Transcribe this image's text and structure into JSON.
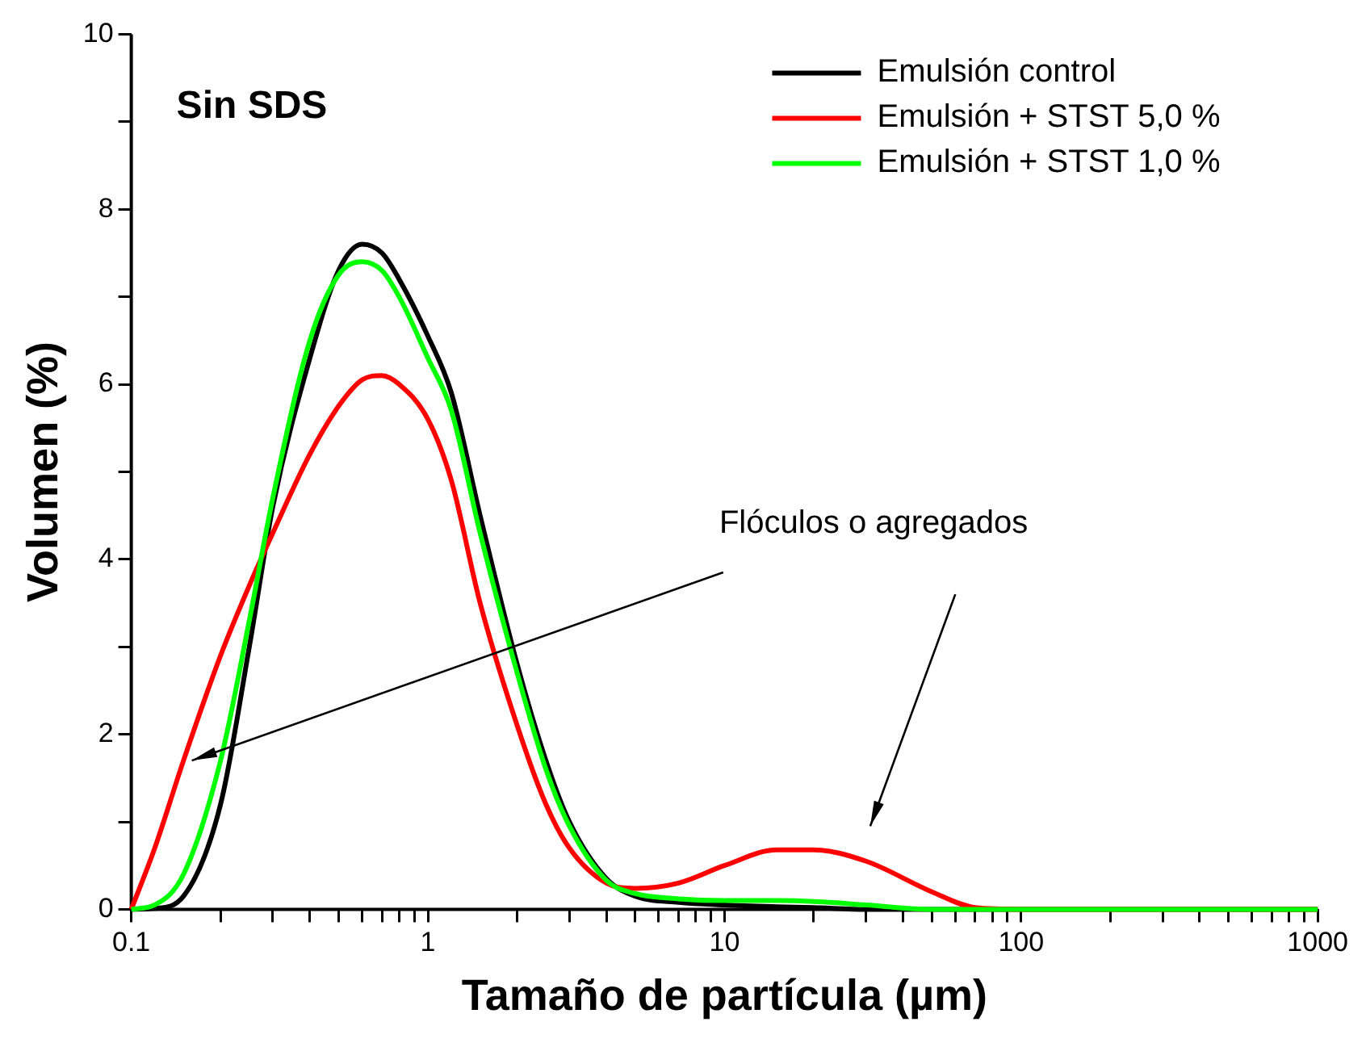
{
  "chart_data": {
    "type": "line",
    "xlabel": "Tamaño de partícula (µm)",
    "ylabel": "Volumen (%)",
    "x": [
      0.1,
      0.12,
      0.15,
      0.2,
      0.25,
      0.3,
      0.4,
      0.5,
      0.6,
      0.7,
      0.8,
      1,
      1.2,
      1.5,
      2,
      2.5,
      3,
      4,
      5,
      7,
      10,
      15,
      20,
      30,
      50,
      70,
      100,
      1000
    ],
    "series": [
      {
        "name": "Emulsión control",
        "color": "#000000",
        "values": [
          0,
          0.01,
          0.15,
          1.2,
          3.0,
          4.6,
          6.3,
          7.3,
          7.6,
          7.5,
          7.2,
          6.55,
          5.9,
          4.5,
          2.8,
          1.7,
          1.0,
          0.35,
          0.15,
          0.08,
          0.05,
          0.03,
          0.02,
          0,
          0,
          0,
          0,
          0
        ]
      },
      {
        "name": "Emulsión + STST 5,0 %",
        "color": "#ff0000",
        "values": [
          0,
          0.7,
          1.7,
          2.9,
          3.7,
          4.3,
          5.2,
          5.75,
          6.05,
          6.1,
          6.0,
          5.6,
          4.9,
          3.5,
          2.1,
          1.2,
          0.7,
          0.3,
          0.24,
          0.3,
          0.5,
          0.68,
          0.68,
          0.55,
          0.2,
          0.02,
          0,
          0
        ]
      },
      {
        "name": "Emulsión + STST 1,0 %",
        "color": "#00ff00",
        "values": [
          0,
          0.05,
          0.4,
          1.7,
          3.3,
          4.7,
          6.5,
          7.25,
          7.4,
          7.3,
          7.0,
          6.3,
          5.7,
          4.3,
          2.7,
          1.6,
          0.95,
          0.33,
          0.18,
          0.12,
          0.1,
          0.1,
          0.09,
          0.05,
          0,
          0,
          0,
          0
        ]
      }
    ],
    "log": "x",
    "xlim": [
      0.1,
      1000
    ],
    "xticks": [
      0.1,
      {
        "value": 0.2,
        "label": null
      },
      {
        "value": 0.3,
        "label": null
      },
      {
        "value": 0.4,
        "label": null
      },
      {
        "value": 0.5,
        "label": null
      },
      {
        "value": 0.6,
        "label": null
      },
      {
        "value": 0.7,
        "label": null
      },
      {
        "value": 0.8,
        "label": null
      },
      {
        "value": 0.9,
        "label": null
      },
      1,
      {
        "value": 2,
        "label": null
      },
      {
        "value": 3,
        "label": null
      },
      {
        "value": 4,
        "label": null
      },
      {
        "value": 5,
        "label": null
      },
      {
        "value": 6,
        "label": null
      },
      {
        "value": 7,
        "label": null
      },
      {
        "value": 8,
        "label": null
      },
      {
        "value": 9,
        "label": null
      },
      10,
      {
        "value": 20,
        "label": null
      },
      {
        "value": 30,
        "label": null
      },
      {
        "value": 40,
        "label": null
      },
      {
        "value": 50,
        "label": null
      },
      {
        "value": 60,
        "label": null
      },
      {
        "value": 70,
        "label": null
      },
      {
        "value": 80,
        "label": null
      },
      {
        "value": 90,
        "label": null
      },
      100,
      {
        "value": 200,
        "label": null
      },
      {
        "value": 300,
        "label": null
      },
      {
        "value": 400,
        "label": null
      },
      {
        "value": 500,
        "label": null
      },
      {
        "value": 600,
        "label": null
      },
      {
        "value": 700,
        "label": null
      },
      {
        "value": 800,
        "label": null
      },
      {
        "value": 900,
        "label": null
      },
      1000
    ],
    "ylim": [
      0,
      10
    ],
    "yticks": [
      0,
      {
        "value": 1,
        "label": null
      },
      2,
      {
        "value": 3,
        "label": null
      },
      4,
      {
        "value": 5,
        "label": null
      },
      6,
      {
        "value": 7,
        "label": null
      },
      8,
      {
        "value": 9,
        "label": null
      },
      10
    ],
    "grid": false,
    "legend": "top right",
    "marker": "none",
    "line_style": "solid",
    "annotations": [
      "Sin SDS",
      "Flóculos o agregados"
    ]
  }
}
